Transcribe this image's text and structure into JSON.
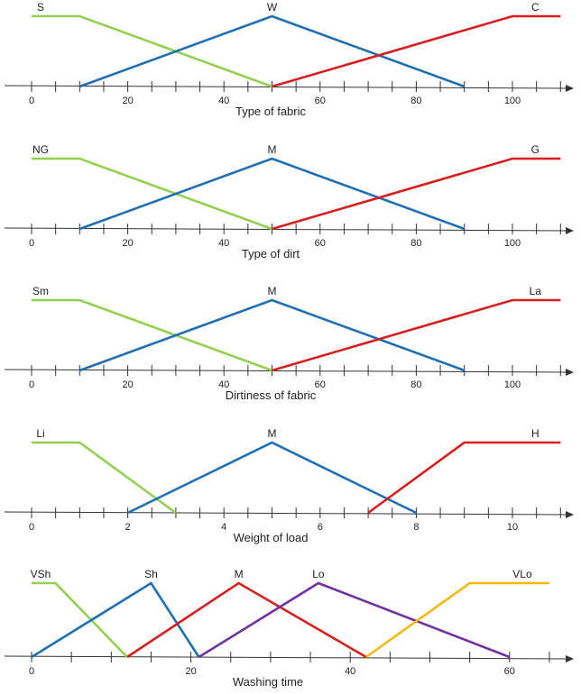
{
  "chart_data": [
    {
      "type": "line",
      "title": "",
      "xlabel": "Type of fabric",
      "ylabel": "",
      "xlim": [
        0,
        110
      ],
      "ylim": [
        0,
        1
      ],
      "x_ticks": [
        0,
        20,
        40,
        60,
        80,
        100
      ],
      "grid": false,
      "series": [
        {
          "name": "S",
          "color": "#92d050",
          "x": [
            0,
            10,
            50
          ],
          "y": [
            1,
            1,
            0
          ]
        },
        {
          "name": "W",
          "color": "#1f6fb4",
          "x": [
            10,
            50,
            90
          ],
          "y": [
            0,
            1,
            0
          ]
        },
        {
          "name": "C",
          "color": "#d61f1f",
          "x": [
            50,
            100,
            110
          ],
          "y": [
            0,
            1,
            1
          ]
        }
      ]
    },
    {
      "type": "line",
      "title": "",
      "xlabel": "Type of dirt",
      "ylabel": "",
      "xlim": [
        0,
        110
      ],
      "ylim": [
        0,
        1
      ],
      "x_ticks": [
        0,
        20,
        40,
        60,
        80,
        100
      ],
      "grid": false,
      "series": [
        {
          "name": "NG",
          "color": "#92d050",
          "x": [
            0,
            10,
            50
          ],
          "y": [
            1,
            1,
            0
          ]
        },
        {
          "name": "M",
          "color": "#1f6fb4",
          "x": [
            10,
            50,
            90
          ],
          "y": [
            0,
            1,
            0
          ]
        },
        {
          "name": "G",
          "color": "#d61f1f",
          "x": [
            50,
            100,
            110
          ],
          "y": [
            0,
            1,
            1
          ]
        }
      ]
    },
    {
      "type": "line",
      "title": "",
      "xlabel": "Dirtiness of fabric",
      "ylabel": "",
      "xlim": [
        0,
        110
      ],
      "ylim": [
        0,
        1
      ],
      "x_ticks": [
        0,
        20,
        40,
        60,
        80,
        100
      ],
      "grid": false,
      "series": [
        {
          "name": "Sm",
          "color": "#92d050",
          "x": [
            0,
            10,
            50
          ],
          "y": [
            1,
            1,
            0
          ]
        },
        {
          "name": "M",
          "color": "#1f6fb4",
          "x": [
            10,
            50,
            90
          ],
          "y": [
            0,
            1,
            0
          ]
        },
        {
          "name": "La",
          "color": "#d61f1f",
          "x": [
            50,
            100,
            110
          ],
          "y": [
            0,
            1,
            1
          ]
        }
      ]
    },
    {
      "type": "line",
      "title": "",
      "xlabel": "Weight of load",
      "ylabel": "",
      "xlim": [
        0,
        11
      ],
      "ylim": [
        0,
        1
      ],
      "x_ticks": [
        0,
        2,
        4,
        6,
        8,
        10
      ],
      "grid": false,
      "series": [
        {
          "name": "Li",
          "color": "#92d050",
          "x": [
            0,
            1,
            3
          ],
          "y": [
            1,
            1,
            0
          ]
        },
        {
          "name": "M",
          "color": "#1f6fb4",
          "x": [
            2,
            5,
            8
          ],
          "y": [
            0,
            1,
            0
          ]
        },
        {
          "name": "H",
          "color": "#d61f1f",
          "x": [
            7,
            9,
            11
          ],
          "y": [
            0,
            1,
            1
          ]
        }
      ]
    },
    {
      "type": "line",
      "title": "",
      "xlabel": "Washing time",
      "ylabel": "",
      "xlim": [
        0,
        65
      ],
      "ylim": [
        0,
        1
      ],
      "x_ticks": [
        0,
        20,
        40,
        60
      ],
      "grid": false,
      "series": [
        {
          "name": "VSh",
          "color": "#92d050",
          "x": [
            0,
            3,
            12
          ],
          "y": [
            1,
            1,
            0
          ]
        },
        {
          "name": "Sh",
          "color": "#1f6fb4",
          "x": [
            0,
            15,
            21
          ],
          "y": [
            0,
            1,
            0
          ]
        },
        {
          "name": "M",
          "color": "#d61f1f",
          "x": [
            12,
            26,
            42
          ],
          "y": [
            0,
            1,
            0
          ]
        },
        {
          "name": "Lo",
          "color": "#7030a0",
          "x": [
            21,
            36,
            60
          ],
          "y": [
            0,
            1,
            0
          ]
        },
        {
          "name": "VLo",
          "color": "#f5b800",
          "x": [
            42,
            55,
            65
          ],
          "y": [
            0,
            1,
            1
          ]
        }
      ]
    }
  ]
}
